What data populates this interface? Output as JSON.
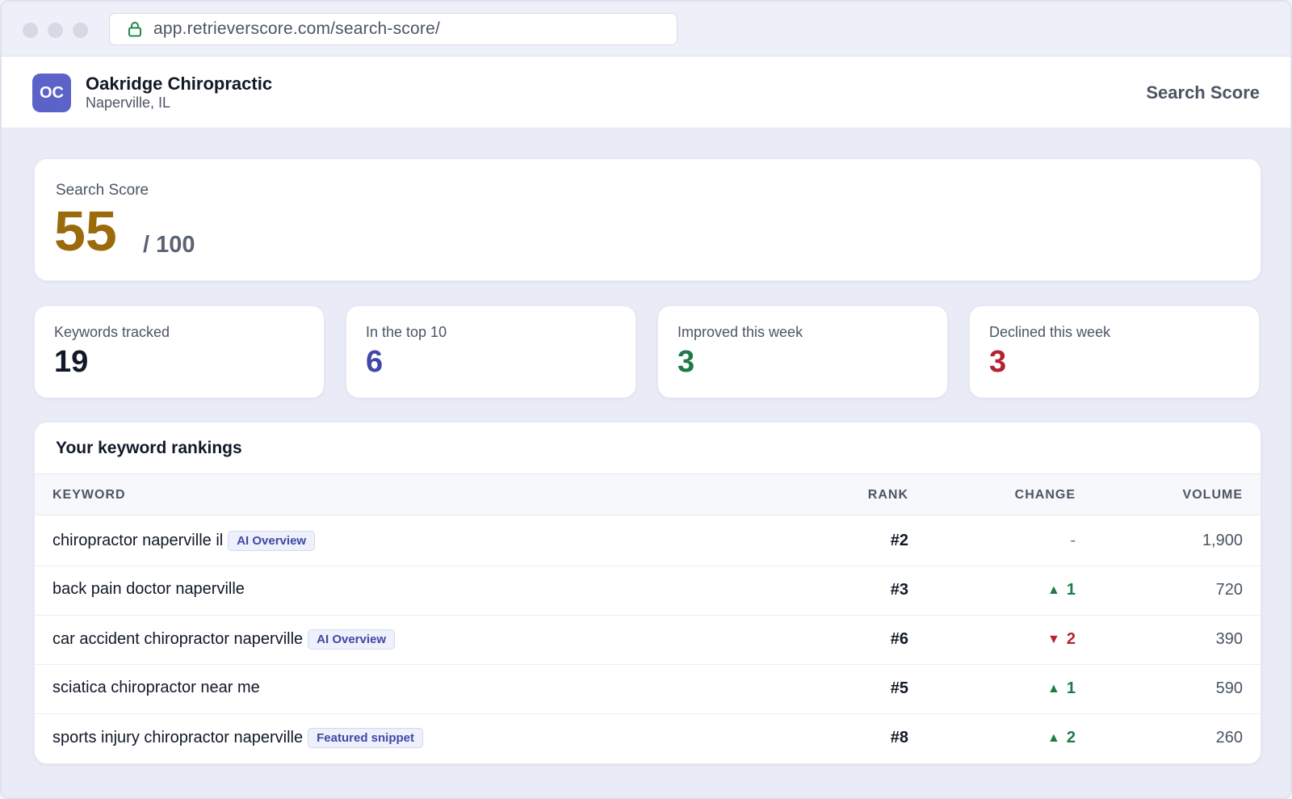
{
  "browser": {
    "url": "app.retrieverscore.com/search-score/"
  },
  "header": {
    "avatar_initials": "OC",
    "business_name": "Oakridge Chiropractic",
    "business_location": "Naperville, IL",
    "page_title": "Search Score"
  },
  "score": {
    "label": "Search Score",
    "value": "55",
    "max": "/ 100",
    "color": "#9a6a0b"
  },
  "stats": [
    {
      "label": "Keywords tracked",
      "value": "19",
      "color": "#111827"
    },
    {
      "label": "In the top 10",
      "value": "6",
      "color": "#3f48a6"
    },
    {
      "label": "Improved this week",
      "value": "3",
      "color": "#1e7a47"
    },
    {
      "label": "Declined this week",
      "value": "3",
      "color": "#b42331"
    }
  ],
  "rankings": {
    "title": "Your keyword rankings",
    "columns": {
      "keyword": "KEYWORD",
      "rank": "RANK",
      "change": "CHANGE",
      "volume": "VOLUME"
    },
    "rows": [
      {
        "keyword": "chiropractor naperville il",
        "tag": "AI Overview",
        "rank": "#2",
        "change": "-",
        "direction": "none",
        "volume": "1,900"
      },
      {
        "keyword": "back pain doctor naperville",
        "tag": "",
        "rank": "#3",
        "change": "1",
        "direction": "up",
        "volume": "720"
      },
      {
        "keyword": "car accident chiropractor naperville",
        "tag": "AI Overview",
        "rank": "#6",
        "change": "2",
        "direction": "down",
        "volume": "390"
      },
      {
        "keyword": "sciatica chiropractor near me",
        "tag": "",
        "rank": "#5",
        "change": "1",
        "direction": "up",
        "volume": "590"
      },
      {
        "keyword": "sports injury chiropractor naperville",
        "tag": "Featured snippet",
        "rank": "#8",
        "change": "2",
        "direction": "up",
        "volume": "260"
      }
    ]
  },
  "icons": {
    "lock": "lock-icon",
    "up": "triangle-up-icon",
    "down": "triangle-down-icon"
  }
}
